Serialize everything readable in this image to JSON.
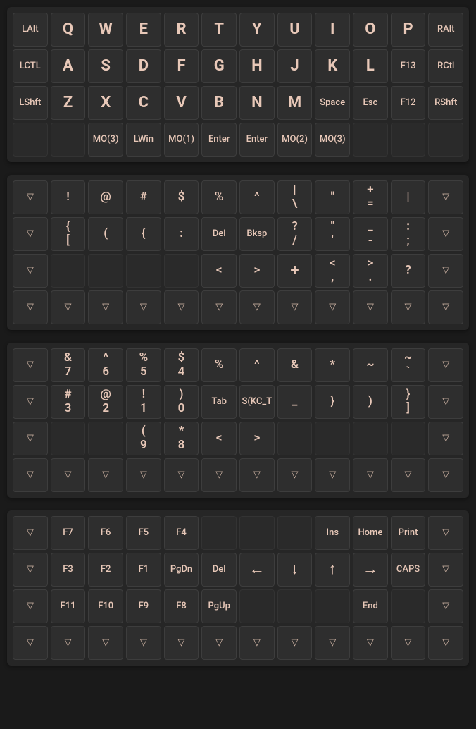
{
  "colors": {
    "page_bg": "#1a1a1a",
    "layer_bg": "#262626",
    "key_bg": "#2e2e2e",
    "key_border": "#3d3d3d",
    "key_empty_bg": "#2a2a2a",
    "text": "#e8c8b8"
  },
  "triangle_glyph": "▽",
  "layers": [
    {
      "rows": [
        [
          {
            "label": "LAlt",
            "size": "sm"
          },
          {
            "label": "Q",
            "size": "big"
          },
          {
            "label": "W",
            "size": "big"
          },
          {
            "label": "E",
            "size": "big"
          },
          {
            "label": "R",
            "size": "big"
          },
          {
            "label": "T",
            "size": "big"
          },
          {
            "label": "Y",
            "size": "big"
          },
          {
            "label": "U",
            "size": "big"
          },
          {
            "label": "I",
            "size": "big"
          },
          {
            "label": "O",
            "size": "big"
          },
          {
            "label": "P",
            "size": "big"
          },
          {
            "label": "RAlt",
            "size": "sm"
          }
        ],
        [
          {
            "label": "LCTL",
            "size": "sm"
          },
          {
            "label": "A",
            "size": "big"
          },
          {
            "label": "S",
            "size": "big"
          },
          {
            "label": "D",
            "size": "big"
          },
          {
            "label": "F",
            "size": "big"
          },
          {
            "label": "G",
            "size": "big"
          },
          {
            "label": "H",
            "size": "big"
          },
          {
            "label": "J",
            "size": "big"
          },
          {
            "label": "K",
            "size": "big"
          },
          {
            "label": "L",
            "size": "big"
          },
          {
            "label": "F13",
            "size": "sm"
          },
          {
            "label": "RCtl",
            "size": "sm"
          }
        ],
        [
          {
            "label": "LShft",
            "size": "sm"
          },
          {
            "label": "Z",
            "size": "big"
          },
          {
            "label": "X",
            "size": "big"
          },
          {
            "label": "C",
            "size": "big"
          },
          {
            "label": "V",
            "size": "big"
          },
          {
            "label": "B",
            "size": "big"
          },
          {
            "label": "N",
            "size": "big"
          },
          {
            "label": "M",
            "size": "big"
          },
          {
            "label": "Space",
            "size": "sm"
          },
          {
            "label": "Esc",
            "size": "sm"
          },
          {
            "label": "F12",
            "size": "sm"
          },
          {
            "label": "RShft",
            "size": "sm"
          }
        ],
        [
          {
            "empty": true
          },
          {
            "empty": true
          },
          {
            "label": "MO(3)",
            "size": "sm"
          },
          {
            "label": "LWin",
            "size": "sm"
          },
          {
            "label": "MO(1)",
            "size": "sm"
          },
          {
            "label": "Enter",
            "size": "sm"
          },
          {
            "label": "Enter",
            "size": "sm"
          },
          {
            "label": "MO(2)",
            "size": "sm"
          },
          {
            "label": "MO(3)",
            "size": "sm"
          },
          {
            "empty": true
          },
          {
            "empty": true
          },
          {
            "empty": true
          }
        ]
      ]
    },
    {
      "rows": [
        [
          {
            "tri": true
          },
          {
            "label": "!",
            "size": "med"
          },
          {
            "label": "@",
            "size": "med"
          },
          {
            "label": "#",
            "size": "med"
          },
          {
            "label": "$",
            "size": "med"
          },
          {
            "label": "%",
            "size": "med"
          },
          {
            "label": "^",
            "size": "med"
          },
          {
            "top": "|",
            "bot": "\\",
            "size": "med"
          },
          {
            "label": "\"",
            "size": "med"
          },
          {
            "top": "+",
            "bot": "=",
            "size": "med"
          },
          {
            "label": "|",
            "size": "med"
          },
          {
            "tri": true
          }
        ],
        [
          {
            "tri": true
          },
          {
            "top": "{",
            "bot": "[",
            "size": "med"
          },
          {
            "label": "(",
            "size": "med"
          },
          {
            "label": "{",
            "size": "med"
          },
          {
            "label": ":",
            "size": "med"
          },
          {
            "label": "Del",
            "size": "sm"
          },
          {
            "label": "Bksp",
            "size": "sm"
          },
          {
            "top": "?",
            "bot": "/",
            "size": "med"
          },
          {
            "top": "\"",
            "bot": "'",
            "size": "med"
          },
          {
            "top": "_",
            "bot": "-",
            "size": "med"
          },
          {
            "top": ":",
            "bot": ";",
            "size": "med"
          },
          {
            "tri": true
          }
        ],
        [
          {
            "tri": true
          },
          {
            "empty": true
          },
          {
            "empty": true
          },
          {
            "empty": true
          },
          {
            "empty": true
          },
          {
            "label": "<",
            "size": "med"
          },
          {
            "label": ">",
            "size": "med"
          },
          {
            "label": "+",
            "size": "big"
          },
          {
            "top": "<",
            "bot": ",",
            "size": "med"
          },
          {
            "top": ">",
            "bot": ".",
            "size": "med"
          },
          {
            "label": "?",
            "size": "med"
          },
          {
            "tri": true
          }
        ],
        [
          {
            "tri": true
          },
          {
            "tri": true
          },
          {
            "tri": true
          },
          {
            "tri": true
          },
          {
            "tri": true
          },
          {
            "tri": true
          },
          {
            "tri": true
          },
          {
            "tri": true
          },
          {
            "tri": true
          },
          {
            "tri": true
          },
          {
            "tri": true
          },
          {
            "tri": true
          }
        ]
      ]
    },
    {
      "rows": [
        [
          {
            "tri": true
          },
          {
            "top": "&",
            "bot": "7",
            "size": "med"
          },
          {
            "top": "^",
            "bot": "6",
            "size": "med"
          },
          {
            "top": "%",
            "bot": "5",
            "size": "med"
          },
          {
            "top": "$",
            "bot": "4",
            "size": "med"
          },
          {
            "label": "%",
            "size": "med"
          },
          {
            "label": "^",
            "size": "med"
          },
          {
            "label": "&",
            "size": "med"
          },
          {
            "label": "*",
            "size": "med"
          },
          {
            "label": "~",
            "size": "med"
          },
          {
            "top": "~",
            "bot": "`",
            "size": "med"
          },
          {
            "tri": true
          }
        ],
        [
          {
            "tri": true
          },
          {
            "top": "#",
            "bot": "3",
            "size": "med"
          },
          {
            "top": "@",
            "bot": "2",
            "size": "med"
          },
          {
            "top": "!",
            "bot": "1",
            "size": "med"
          },
          {
            "top": ")",
            "bot": "0",
            "size": "med"
          },
          {
            "label": "Tab",
            "size": "sm"
          },
          {
            "label": "S(KC_T",
            "size": "sm"
          },
          {
            "label": "_",
            "size": "med"
          },
          {
            "label": "}",
            "size": "med"
          },
          {
            "label": ")",
            "size": "med"
          },
          {
            "top": "}",
            "bot": "]",
            "size": "med"
          },
          {
            "tri": true
          }
        ],
        [
          {
            "tri": true
          },
          {
            "empty": true
          },
          {
            "empty": true
          },
          {
            "top": "(",
            "bot": "9",
            "size": "med"
          },
          {
            "top": "*",
            "bot": "8",
            "size": "med"
          },
          {
            "label": "<",
            "size": "med"
          },
          {
            "label": ">",
            "size": "med"
          },
          {
            "empty": true
          },
          {
            "empty": true
          },
          {
            "empty": true
          },
          {
            "empty": true
          },
          {
            "tri": true
          }
        ],
        [
          {
            "tri": true
          },
          {
            "tri": true
          },
          {
            "tri": true
          },
          {
            "tri": true
          },
          {
            "tri": true
          },
          {
            "tri": true
          },
          {
            "tri": true
          },
          {
            "tri": true
          },
          {
            "tri": true
          },
          {
            "tri": true
          },
          {
            "tri": true
          },
          {
            "tri": true
          }
        ]
      ]
    },
    {
      "rows": [
        [
          {
            "tri": true
          },
          {
            "label": "F7",
            "size": "sm"
          },
          {
            "label": "F6",
            "size": "sm"
          },
          {
            "label": "F5",
            "size": "sm"
          },
          {
            "label": "F4",
            "size": "sm"
          },
          {
            "empty": true
          },
          {
            "empty": true
          },
          {
            "empty": true
          },
          {
            "label": "Ins",
            "size": "sm"
          },
          {
            "label": "Home",
            "size": "sm"
          },
          {
            "label": "Print",
            "size": "sm"
          },
          {
            "tri": true
          }
        ],
        [
          {
            "tri": true
          },
          {
            "label": "F3",
            "size": "sm"
          },
          {
            "label": "F2",
            "size": "sm"
          },
          {
            "label": "F1",
            "size": "sm"
          },
          {
            "label": "PgDn",
            "size": "sm"
          },
          {
            "label": "Del",
            "size": "sm"
          },
          {
            "label": "←",
            "size": "big"
          },
          {
            "label": "↓",
            "size": "big"
          },
          {
            "label": "↑",
            "size": "big"
          },
          {
            "label": "→",
            "size": "big"
          },
          {
            "label": "CAPS",
            "size": "sm"
          },
          {
            "tri": true
          }
        ],
        [
          {
            "tri": true
          },
          {
            "label": "F11",
            "size": "sm"
          },
          {
            "label": "F10",
            "size": "sm"
          },
          {
            "label": "F9",
            "size": "sm"
          },
          {
            "label": "F8",
            "size": "sm"
          },
          {
            "label": "PgUp",
            "size": "sm"
          },
          {
            "empty": true
          },
          {
            "empty": true
          },
          {
            "empty": true
          },
          {
            "label": "End",
            "size": "sm"
          },
          {
            "empty": true
          },
          {
            "tri": true
          }
        ],
        [
          {
            "tri": true
          },
          {
            "tri": true
          },
          {
            "tri": true
          },
          {
            "tri": true
          },
          {
            "tri": true
          },
          {
            "tri": true
          },
          {
            "tri": true
          },
          {
            "tri": true
          },
          {
            "tri": true
          },
          {
            "tri": true
          },
          {
            "tri": true
          },
          {
            "tri": true
          }
        ]
      ]
    }
  ]
}
